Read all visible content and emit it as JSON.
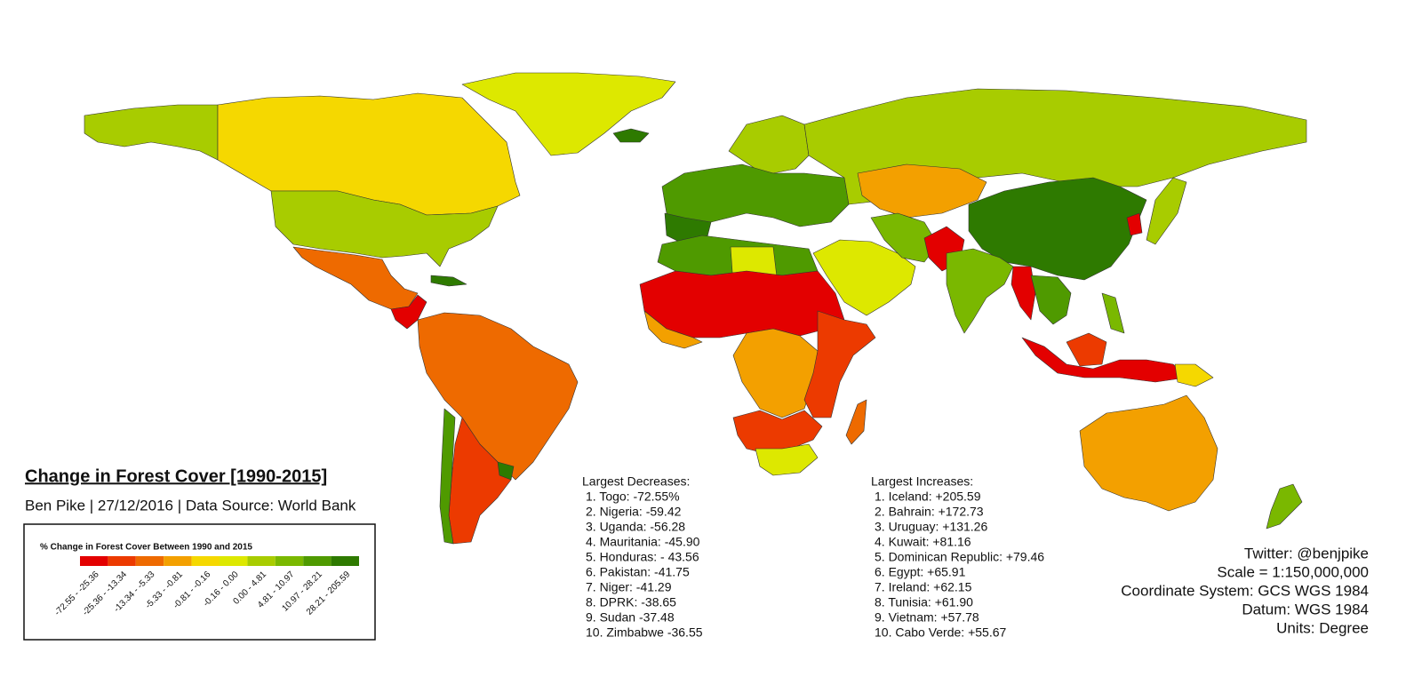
{
  "title": "Change in Forest Cover [1990-2015]",
  "subtitle": "Ben Pike | 27/12/2016 | Data Source: World Bank",
  "legend": {
    "title": "% Change in Forest Cover Between 1990 and 2015",
    "classes": [
      {
        "label": "-72.55 - -25.36",
        "color": "#e30000"
      },
      {
        "label": "-25.36 - -13.34",
        "color": "#ec3a00"
      },
      {
        "label": "-13.34 - -5.33",
        "color": "#ee6a00"
      },
      {
        "label": "-5.33 - -0.81",
        "color": "#f3a000"
      },
      {
        "label": "-0.81 - -0.16",
        "color": "#f5d800"
      },
      {
        "label": "-0.16 - 0.00",
        "color": "#dde800"
      },
      {
        "label": "0.00 - 4.81",
        "color": "#a8cc00"
      },
      {
        "label": "4.81 - 10.97",
        "color": "#7ab800"
      },
      {
        "label": "10.97 - 28.21",
        "color": "#4f9a00"
      },
      {
        "label": "28.21 - 205.59",
        "color": "#2e7a00"
      }
    ]
  },
  "decreases": {
    "heading": "Largest Decreases:",
    "items": [
      "1. Togo: -72.55%",
      "2. Nigeria: -59.42",
      "3. Uganda: -56.28",
      "4. Mauritania: -45.90",
      "5. Honduras: - 43.56",
      "6. Pakistan: -41.75",
      "7. Niger: -41.29",
      "8. DPRK: -38.65",
      "9. Sudan -37.48",
      "10. Zimbabwe -36.55"
    ]
  },
  "increases": {
    "heading": "Largest Increases:",
    "items": [
      "1. Iceland: +205.59",
      "2. Bahrain: +172.73",
      "3. Uruguay: +131.26",
      "4. Kuwait: +81.16",
      "5. Dominican Republic: +79.46",
      "6. Egypt: +65.91",
      "7. Ireland: +62.15",
      "8. Tunisia: +61.90",
      "9. Vietnam: +57.78",
      "10. Cabo Verde: +55.67"
    ]
  },
  "info": [
    "Twitter: @benjpike",
    "Scale = 1:150,000,000",
    "Coordinate System: GCS WGS 1984",
    "Datum: WGS 1984",
    "Units: Degree"
  ]
}
